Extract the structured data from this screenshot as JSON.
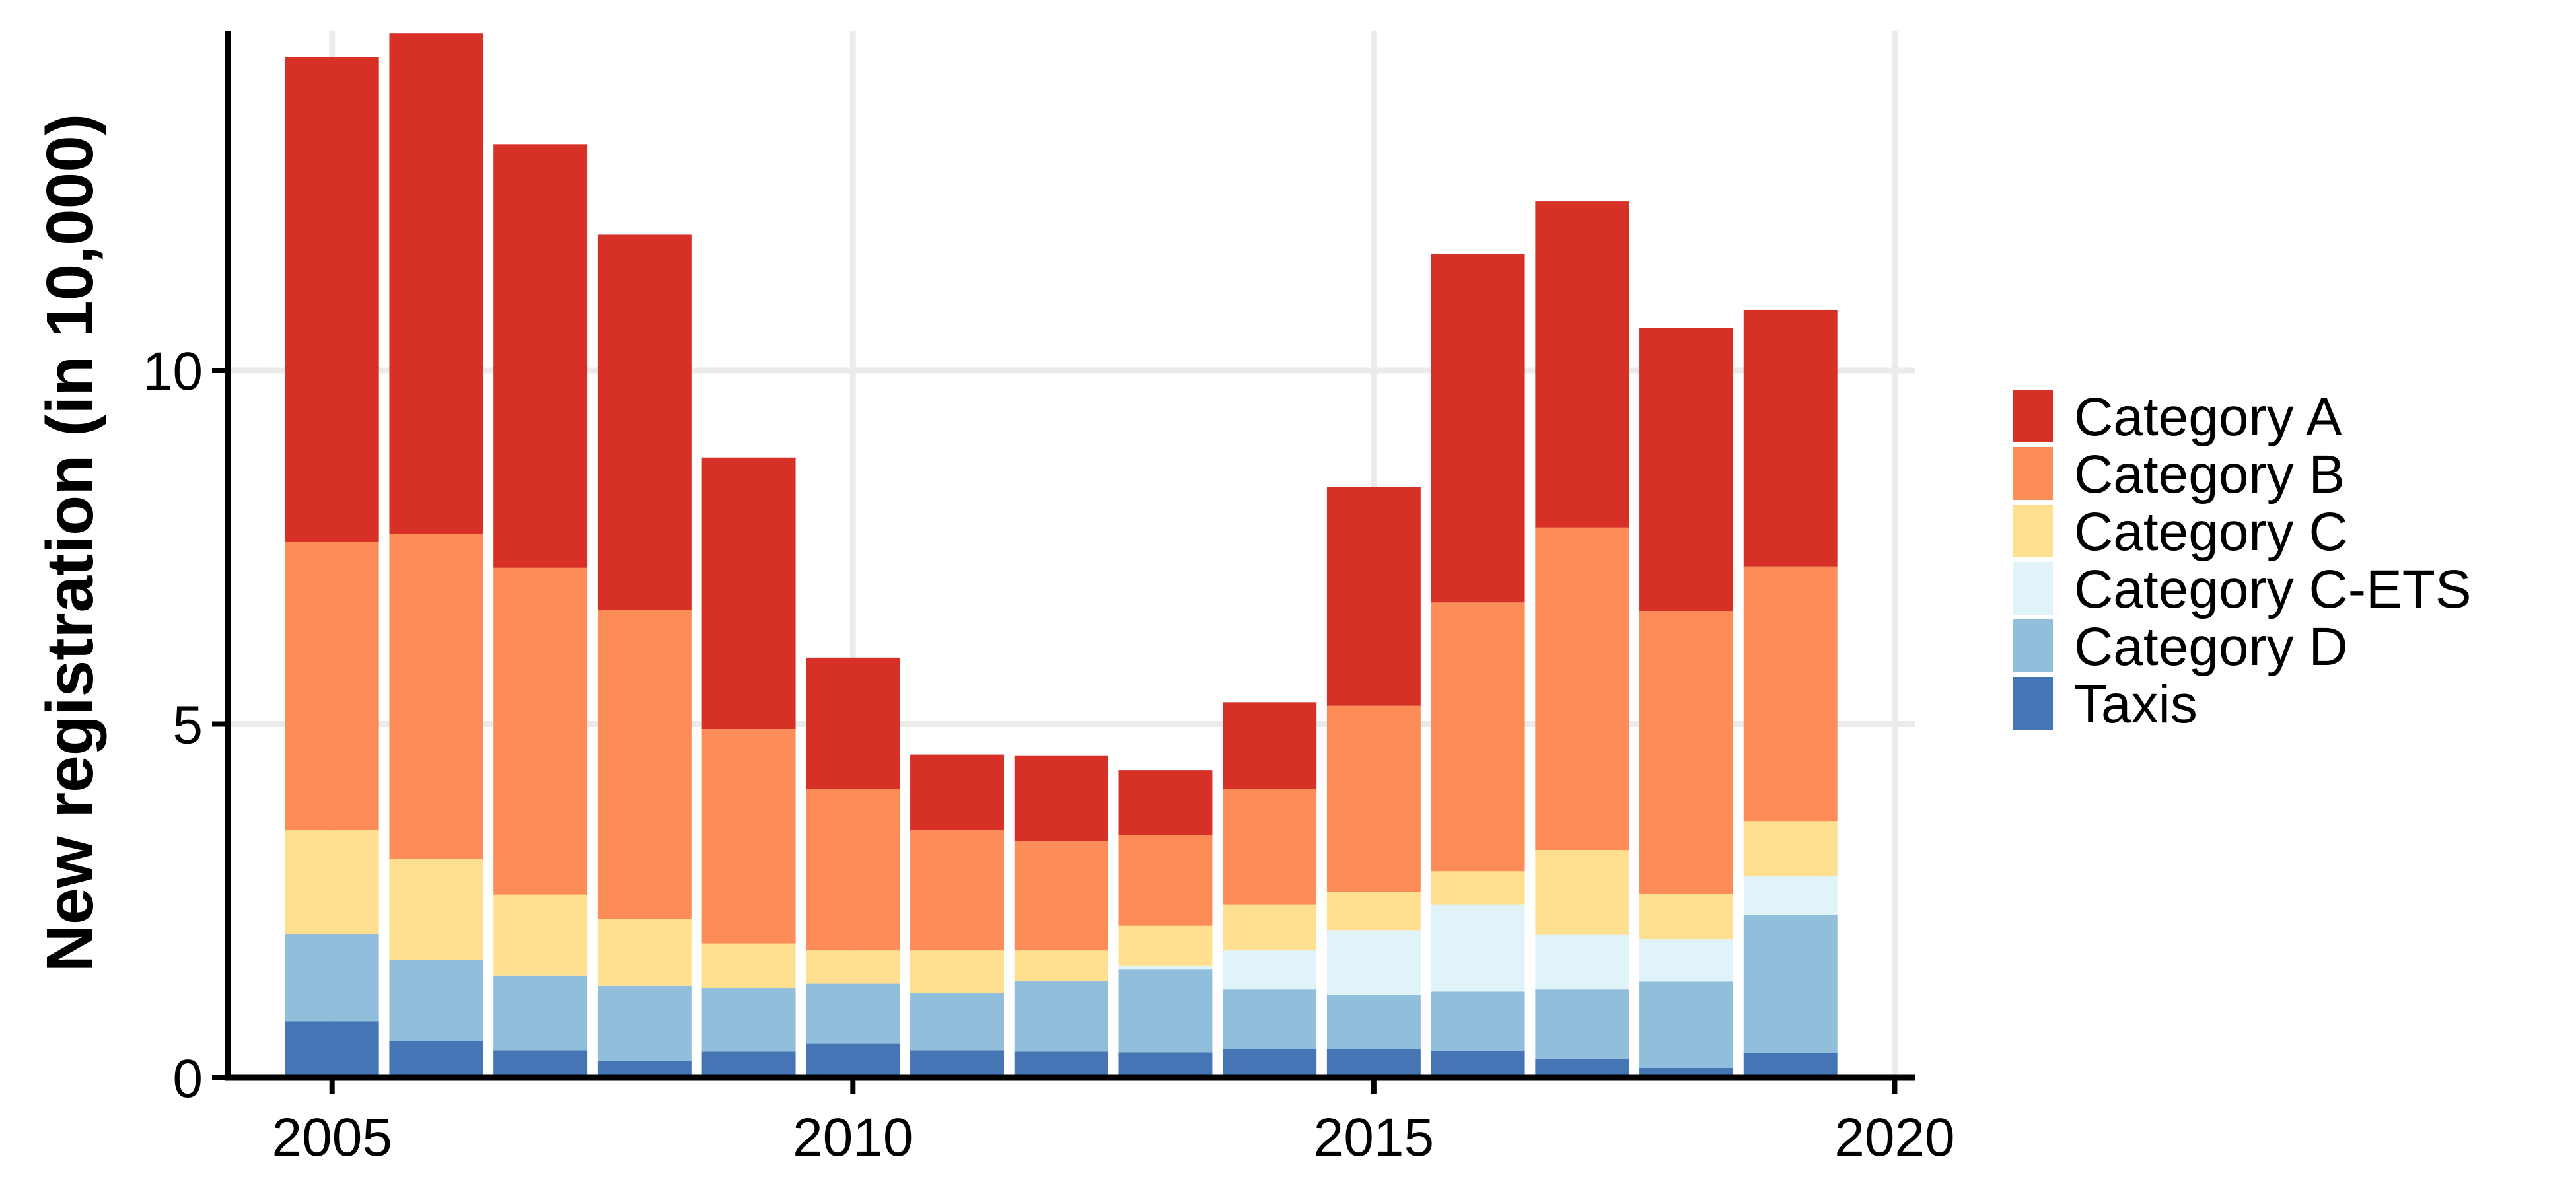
{
  "chart_data": {
    "type": "bar",
    "stacked": true,
    "title": "",
    "xlabel": "",
    "ylabel": "New registration (in 10,000)",
    "x": [
      2005,
      2006,
      2007,
      2008,
      2009,
      2010,
      2011,
      2012,
      2013,
      2014,
      2015,
      2016,
      2017,
      2018,
      2019
    ],
    "xlim": [
      2004,
      2020.2
    ],
    "ylim": [
      0,
      14.8
    ],
    "x_ticks": [
      2005,
      2010,
      2015,
      2020
    ],
    "x_tick_labels": [
      "2005",
      "2010",
      "2015",
      "2020"
    ],
    "y_ticks": [
      0,
      5,
      10
    ],
    "y_tick_labels": [
      "0",
      "5",
      "10"
    ],
    "grid": true,
    "legend_position": "right",
    "series": [
      {
        "name": "Taxis",
        "color": "#4575b4",
        "values": [
          0.8,
          0.52,
          0.39,
          0.24,
          0.37,
          0.48,
          0.39,
          0.37,
          0.36,
          0.41,
          0.41,
          0.38,
          0.27,
          0.14,
          0.35
        ]
      },
      {
        "name": "Category D",
        "color": "#91bfdb",
        "values": [
          1.23,
          1.15,
          1.05,
          1.06,
          0.9,
          0.85,
          0.81,
          1.0,
          1.17,
          0.84,
          0.76,
          0.84,
          0.98,
          1.22,
          1.95
        ]
      },
      {
        "name": "Category C-ETS",
        "color": "#e0f3f8",
        "values": [
          0,
          0,
          0,
          0,
          0,
          0,
          0,
          0,
          0.05,
          0.56,
          0.91,
          1.23,
          0.77,
          0.6,
          0.55
        ]
      },
      {
        "name": "Category C",
        "color": "#fee090",
        "values": [
          1.47,
          1.42,
          1.15,
          0.95,
          0.63,
          0.47,
          0.6,
          0.43,
          0.57,
          0.64,
          0.55,
          0.47,
          1.2,
          0.64,
          0.78
        ]
      },
      {
        "name": "Category B",
        "color": "#fc8d59",
        "values": [
          4.08,
          4.6,
          4.62,
          4.37,
          3.03,
          2.28,
          1.7,
          1.55,
          1.28,
          1.63,
          2.63,
          3.8,
          4.56,
          4.0,
          3.6
        ]
      },
      {
        "name": "Category A",
        "color": "#d73027",
        "values": [
          6.85,
          7.08,
          5.99,
          5.3,
          3.84,
          1.86,
          1.07,
          1.2,
          0.92,
          1.23,
          3.09,
          4.93,
          4.61,
          4.0,
          3.63
        ]
      }
    ],
    "legend_order": [
      "Category A",
      "Category B",
      "Category C",
      "Category C-ETS",
      "Category D",
      "Taxis"
    ]
  }
}
